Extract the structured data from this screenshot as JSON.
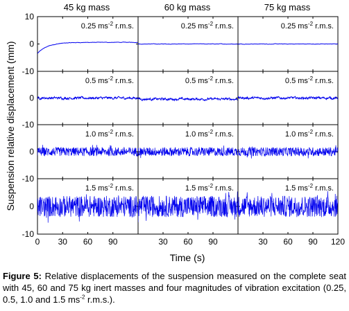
{
  "chart_data": {
    "type": "line",
    "grid_rows": 4,
    "grid_cols": 3,
    "column_titles": [
      "45 kg mass",
      "60 kg mass",
      "75 kg mass"
    ],
    "panel_label_base": [
      "0.25 ms",
      "0.5 ms",
      "1.0 ms",
      "1.5 ms"
    ],
    "panel_label_sup": "-2",
    "panel_label_suffix": " r.m.s.",
    "rms_levels": [
      0.25,
      0.5,
      1.0,
      1.5
    ],
    "xlabel": "Time (s)",
    "ylabel": "Suspension relative displacement (mm)",
    "ylim": [
      -10,
      10
    ],
    "yticks": [
      10,
      0,
      -10
    ],
    "ytick_labels_repeat": [
      "-10",
      "0",
      "-10",
      "0",
      "-10",
      "0",
      "-10",
      "0",
      "-10"
    ],
    "x_ticks_col1": [
      0,
      30,
      60,
      90
    ],
    "x_ticks_col2": [
      30,
      60,
      90
    ],
    "x_ticks_col3": [
      30,
      60,
      90,
      120
    ],
    "xlim_each_panel": [
      0,
      120
    ],
    "series_color": "#0000ee",
    "approx_peak_amplitude_mm": [
      0.5,
      1.0,
      3.0,
      7.0
    ],
    "initial_offset_45kg_025": -3.5
  },
  "caption": {
    "figure_label": "Figure 5:",
    "text_before_sup": " Relative displacements of the suspension measured on the complete seat with 45, 60 and 75 kg inert masses and four magnitudes of vibration excitation (0.25, 0.5, 1.0 and 1.5 ms",
    "sup": "-2",
    "text_after_sup": " r.m.s.)."
  }
}
